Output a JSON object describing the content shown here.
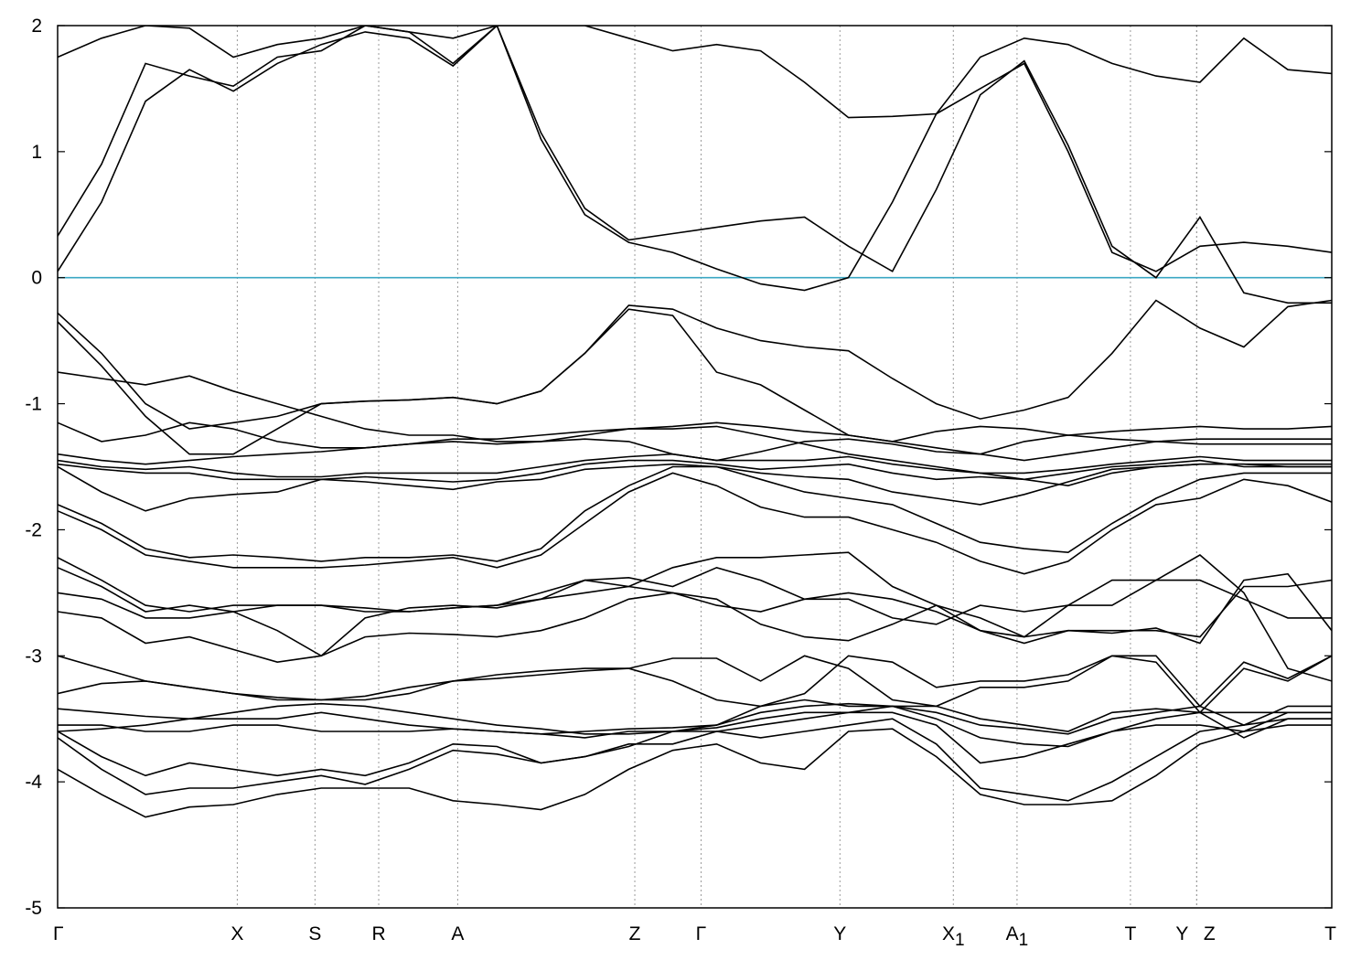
{
  "chart_data": {
    "type": "line",
    "title": "",
    "xlabel": "",
    "ylabel": "",
    "ylim": [
      -5,
      2
    ],
    "yticks": [
      "2",
      "1",
      "0",
      "-1",
      "-2",
      "-3",
      "-4",
      "-5"
    ],
    "ytick_values": [
      2,
      1,
      0,
      -1,
      -2,
      -3,
      -4,
      -5
    ],
    "kpoint_labels": [
      "Γ",
      "X",
      "S",
      "R",
      "A",
      "Z",
      "Γ",
      "Y",
      "X1",
      "A1",
      "T",
      "Y",
      "Z",
      "T"
    ],
    "kpoint_positions": [
      0,
      1.41,
      2.02,
      2.52,
      3.14,
      4.53,
      5.05,
      6.14,
      7.03,
      7.53,
      8.42,
      8.94,
      8.94,
      10.0
    ],
    "xlim": [
      0,
      10.0
    ],
    "reference_line": {
      "y": 0,
      "color": "#3aa7c3"
    },
    "band_color": "#000000",
    "series": [
      {
        "values": [
          -3.9,
          -4.1,
          -4.28,
          -4.2,
          -4.18,
          -4.1,
          -4.05,
          -4.05,
          -4.05,
          -4.15,
          -4.18,
          -4.22,
          -4.1,
          -3.9,
          -3.75,
          -3.7,
          -3.85,
          -3.9,
          -3.6,
          -3.58,
          -3.8,
          -4.1,
          -4.18,
          -4.18,
          -4.15,
          -3.95,
          -3.7,
          -3.6,
          -3.55,
          -3.55
        ]
      },
      {
        "values": [
          -3.65,
          -3.9,
          -4.1,
          -4.05,
          -4.05,
          -4.0,
          -3.95,
          -4.02,
          -3.9,
          -3.75,
          -3.78,
          -3.85,
          -3.8,
          -3.7,
          -3.7,
          -3.6,
          -3.65,
          -3.6,
          -3.55,
          -3.5,
          -3.7,
          -4.05,
          -4.1,
          -4.15,
          -4.0,
          -3.8,
          -3.6,
          -3.55,
          -3.5,
          -3.5
        ]
      },
      {
        "values": [
          -3.6,
          -3.8,
          -3.95,
          -3.85,
          -3.9,
          -3.95,
          -3.9,
          -3.95,
          -3.85,
          -3.7,
          -3.72,
          -3.85,
          -3.8,
          -3.72,
          -3.6,
          -3.6,
          -3.55,
          -3.5,
          -3.45,
          -3.45,
          -3.55,
          -3.85,
          -3.8,
          -3.7,
          -3.6,
          -3.55,
          -3.55,
          -3.6,
          -3.45,
          -3.45
        ]
      },
      {
        "values": [
          -3.55,
          -3.55,
          -3.6,
          -3.6,
          -3.55,
          -3.55,
          -3.6,
          -3.6,
          -3.6,
          -3.58,
          -3.6,
          -3.62,
          -3.65,
          -3.6,
          -3.6,
          -3.57,
          -3.5,
          -3.45,
          -3.45,
          -3.4,
          -3.5,
          -3.65,
          -3.7,
          -3.72,
          -3.6,
          -3.5,
          -3.45,
          -3.65,
          -3.5,
          -3.5
        ]
      },
      {
        "values": [
          -3.6,
          -3.58,
          -3.55,
          -3.5,
          -3.45,
          -3.4,
          -3.38,
          -3.4,
          -3.45,
          -3.5,
          -3.55,
          -3.58,
          -3.62,
          -3.62,
          -3.6,
          -3.55,
          -3.45,
          -3.4,
          -3.38,
          -3.4,
          -3.45,
          -3.55,
          -3.58,
          -3.62,
          -3.5,
          -3.45,
          -3.4,
          -3.55,
          -3.4,
          -3.4
        ]
      },
      {
        "values": [
          -3.42,
          -3.45,
          -3.48,
          -3.5,
          -3.5,
          -3.5,
          -3.45,
          -3.5,
          -3.55,
          -3.58,
          -3.6,
          -3.62,
          -3.6,
          -3.58,
          -3.57,
          -3.55,
          -3.4,
          -3.35,
          -3.4,
          -3.4,
          -3.4,
          -3.5,
          -3.55,
          -3.6,
          -3.45,
          -3.42,
          -3.45,
          -3.45,
          -3.45,
          -3.45
        ]
      },
      {
        "values": [
          -3.3,
          -3.22,
          -3.2,
          -3.25,
          -3.3,
          -3.35,
          -3.35,
          -3.35,
          -3.3,
          -3.2,
          -3.15,
          -3.12,
          -3.1,
          -3.1,
          -3.02,
          -3.02,
          -3.2,
          -3.0,
          -3.1,
          -3.35,
          -3.4,
          -3.25,
          -3.25,
          -3.2,
          -3.0,
          -3.05,
          -3.45,
          -3.1,
          -3.2,
          -3.0
        ]
      },
      {
        "values": [
          -3.0,
          -3.1,
          -3.2,
          -3.25,
          -3.3,
          -3.33,
          -3.35,
          -3.32,
          -3.25,
          -3.2,
          -3.18,
          -3.15,
          -3.12,
          -3.1,
          -3.2,
          -3.35,
          -3.4,
          -3.3,
          -3.0,
          -3.05,
          -3.25,
          -3.2,
          -3.2,
          -3.15,
          -3.0,
          -3.0,
          -3.4,
          -3.05,
          -3.18,
          -3.0
        ]
      },
      {
        "values": [
          -2.65,
          -2.7,
          -2.9,
          -2.85,
          -2.95,
          -3.05,
          -3.0,
          -2.85,
          -2.82,
          -2.83,
          -2.85,
          -2.8,
          -2.7,
          -2.55,
          -2.5,
          -2.55,
          -2.75,
          -2.85,
          -2.88,
          -2.75,
          -2.6,
          -2.7,
          -2.85,
          -2.8,
          -2.82,
          -2.78,
          -2.9,
          -2.4,
          -2.35,
          -2.8
        ]
      },
      {
        "values": [
          -2.5,
          -2.55,
          -2.7,
          -2.7,
          -2.65,
          -2.6,
          -2.6,
          -2.62,
          -2.65,
          -2.62,
          -2.6,
          -2.5,
          -2.4,
          -2.45,
          -2.5,
          -2.6,
          -2.65,
          -2.55,
          -2.5,
          -2.55,
          -2.65,
          -2.8,
          -2.9,
          -2.8,
          -2.8,
          -2.8,
          -2.85,
          -2.45,
          -2.45,
          -2.4
        ]
      },
      {
        "values": [
          -2.3,
          -2.45,
          -2.65,
          -2.6,
          -2.65,
          -2.8,
          -3.0,
          -2.7,
          -2.62,
          -2.6,
          -2.62,
          -2.55,
          -2.4,
          -2.38,
          -2.45,
          -2.3,
          -2.4,
          -2.55,
          -2.55,
          -2.7,
          -2.75,
          -2.6,
          -2.65,
          -2.6,
          -2.6,
          -2.4,
          -2.4,
          -2.55,
          -2.7,
          -2.7
        ]
      },
      {
        "values": [
          -2.22,
          -2.4,
          -2.6,
          -2.65,
          -2.6,
          -2.6,
          -2.6,
          -2.65,
          -2.65,
          -2.62,
          -2.6,
          -2.55,
          -2.5,
          -2.45,
          -2.3,
          -2.22,
          -2.22,
          -2.2,
          -2.18,
          -2.45,
          -2.6,
          -2.8,
          -2.85,
          -2.6,
          -2.4,
          -2.4,
          -2.2,
          -2.5,
          -3.1,
          -3.2
        ]
      },
      {
        "values": [
          -1.85,
          -2.0,
          -2.2,
          -2.25,
          -2.3,
          -2.3,
          -2.3,
          -2.28,
          -2.25,
          -2.22,
          -2.3,
          -2.2,
          -1.95,
          -1.7,
          -1.55,
          -1.65,
          -1.82,
          -1.9,
          -1.9,
          -2.0,
          -2.1,
          -2.25,
          -2.35,
          -2.25,
          -2.0,
          -1.8,
          -1.75,
          -1.6,
          -1.65,
          -1.78
        ]
      },
      {
        "values": [
          -1.8,
          -1.95,
          -2.15,
          -2.22,
          -2.2,
          -2.22,
          -2.25,
          -2.22,
          -2.22,
          -2.2,
          -2.25,
          -2.15,
          -1.85,
          -1.65,
          -1.5,
          -1.5,
          -1.6,
          -1.7,
          -1.75,
          -1.8,
          -1.95,
          -2.1,
          -2.15,
          -2.18,
          -1.95,
          -1.75,
          -1.6,
          -1.55,
          -1.55,
          -1.55
        ]
      },
      {
        "values": [
          -1.5,
          -1.7,
          -1.85,
          -1.75,
          -1.72,
          -1.7,
          -1.6,
          -1.62,
          -1.65,
          -1.68,
          -1.62,
          -1.6,
          -1.52,
          -1.5,
          -1.48,
          -1.5,
          -1.55,
          -1.58,
          -1.6,
          -1.7,
          -1.75,
          -1.8,
          -1.72,
          -1.62,
          -1.52,
          -1.5,
          -1.48,
          -1.48,
          -1.5,
          -1.5
        ]
      },
      {
        "values": [
          -1.48,
          -1.52,
          -1.55,
          -1.55,
          -1.6,
          -1.6,
          -1.6,
          -1.58,
          -1.6,
          -1.62,
          -1.6,
          -1.55,
          -1.48,
          -1.45,
          -1.45,
          -1.48,
          -1.52,
          -1.5,
          -1.48,
          -1.55,
          -1.6,
          -1.58,
          -1.6,
          -1.55,
          -1.5,
          -1.48,
          -1.45,
          -1.5,
          -1.5,
          -1.5
        ]
      },
      {
        "values": [
          -1.45,
          -1.5,
          -1.52,
          -1.5,
          -1.55,
          -1.58,
          -1.58,
          -1.55,
          -1.55,
          -1.55,
          -1.55,
          -1.5,
          -1.45,
          -1.42,
          -1.4,
          -1.45,
          -1.45,
          -1.45,
          -1.42,
          -1.48,
          -1.52,
          -1.55,
          -1.55,
          -1.52,
          -1.48,
          -1.45,
          -1.42,
          -1.45,
          -1.45,
          -1.45
        ]
      },
      {
        "values": [
          -1.4,
          -1.45,
          -1.48,
          -1.45,
          -1.42,
          -1.4,
          -1.38,
          -1.35,
          -1.32,
          -1.3,
          -1.32,
          -1.3,
          -1.28,
          -1.3,
          -1.4,
          -1.45,
          -1.38,
          -1.3,
          -1.28,
          -1.32,
          -1.38,
          -1.4,
          -1.45,
          -1.4,
          -1.35,
          -1.3,
          -1.28,
          -1.28,
          -1.28,
          -1.28
        ]
      },
      {
        "values": [
          -1.15,
          -1.3,
          -1.25,
          -1.15,
          -1.2,
          -1.3,
          -1.35,
          -1.35,
          -1.32,
          -1.28,
          -1.28,
          -1.25,
          -1.22,
          -1.2,
          -1.18,
          -1.15,
          -1.18,
          -1.22,
          -1.25,
          -1.3,
          -1.22,
          -1.18,
          -1.2,
          -1.25,
          -1.22,
          -1.2,
          -1.18,
          -1.2,
          -1.2,
          -1.18
        ]
      },
      {
        "values": [
          -0.35,
          -0.7,
          -1.1,
          -1.4,
          -1.4,
          -1.2,
          -1.0,
          -0.98,
          -0.97,
          -0.95,
          -1.0,
          -0.9,
          -0.6,
          -0.25,
          -0.3,
          -0.75,
          -0.85,
          -1.05,
          -1.25,
          -1.3,
          -1.35,
          -1.4,
          -1.3,
          -1.25,
          -1.28,
          -1.3,
          -1.32,
          -1.32,
          -1.32,
          -1.32
        ]
      },
      {
        "values": [
          -0.28,
          -0.6,
          -1.0,
          -1.2,
          -1.15,
          -1.1,
          -1.0,
          -0.98,
          -0.97,
          -0.95,
          -1.0,
          -0.9,
          -0.6,
          -0.22,
          -0.25,
          -0.4,
          -0.5,
          -0.55,
          -0.58,
          -0.8,
          -1.0,
          -1.12,
          -1.05,
          -0.95,
          -0.6,
          -0.18,
          -0.4,
          -0.55,
          -0.23,
          -0.18
        ]
      },
      {
        "values": [
          -0.75,
          -0.8,
          -0.85,
          -0.78,
          -0.9,
          -1.0,
          -1.1,
          -1.2,
          -1.25,
          -1.25,
          -1.3,
          -1.3,
          -1.25,
          -1.2,
          -1.2,
          -1.18,
          -1.25,
          -1.32,
          -1.4,
          -1.45,
          -1.5,
          -1.55,
          -1.6,
          -1.65,
          -1.55,
          -1.5,
          -1.48,
          -1.48,
          -1.48,
          -1.48
        ]
      },
      {
        "values": [
          0.05,
          0.6,
          1.4,
          1.65,
          1.48,
          1.7,
          1.85,
          1.95,
          1.9,
          1.68,
          2.0,
          1.1,
          0.5,
          0.28,
          0.2,
          0.07,
          -0.05,
          -0.1,
          0.0,
          0.6,
          1.3,
          1.5,
          1.7,
          1.0,
          0.2,
          0.05,
          0.25,
          0.28,
          0.25,
          0.2
        ]
      },
      {
        "values": [
          0.33,
          0.9,
          1.7,
          1.6,
          1.52,
          1.75,
          1.8,
          2.0,
          1.95,
          1.7,
          2.0,
          1.15,
          0.55,
          0.3,
          0.35,
          0.4,
          0.45,
          0.48,
          0.25,
          0.05,
          0.7,
          1.45,
          1.72,
          1.05,
          0.25,
          0.0,
          0.48,
          -0.12,
          -0.2,
          -0.2
        ]
      },
      {
        "values": [
          1.75,
          1.9,
          2.0,
          1.98,
          1.75,
          1.85,
          1.9,
          2.0,
          1.95,
          1.9,
          2.0,
          2.0,
          2.0,
          1.9,
          1.8,
          1.85,
          1.8,
          1.55,
          1.27,
          1.28,
          1.3,
          1.75,
          1.9,
          1.85,
          1.7,
          1.6,
          1.55,
          1.9,
          1.65,
          1.62
        ]
      }
    ]
  }
}
